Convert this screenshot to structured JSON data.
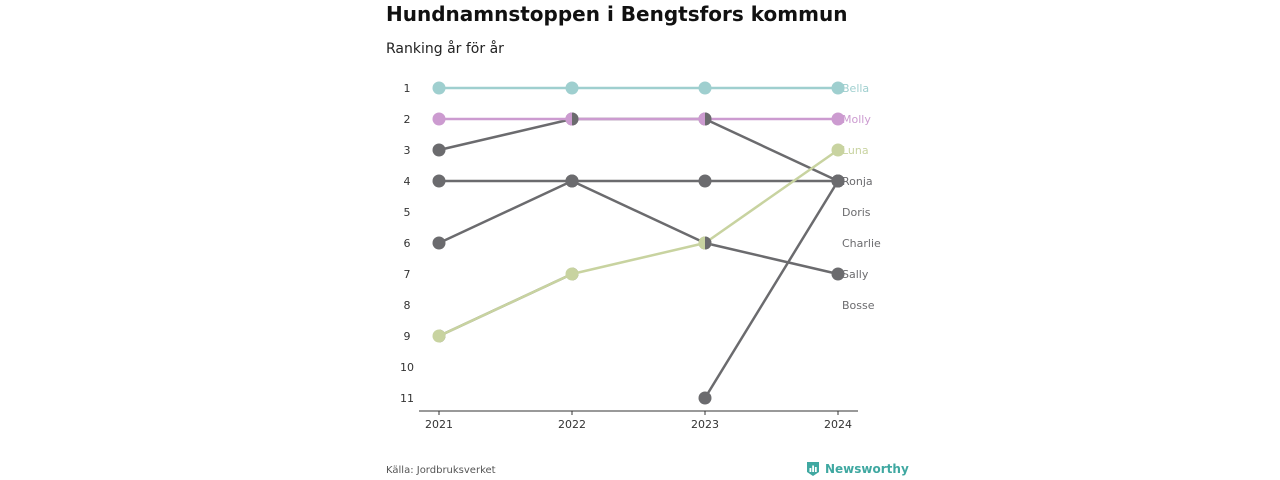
{
  "title": "Hundnamnstoppen i Bengtsfors kommun",
  "subtitle": "Ranking år för år",
  "source": "Källa: Jordbruksverket",
  "brand": {
    "name": "Newsworthy",
    "icon": "newsworthy-logo-icon",
    "color": "#3fa8a1"
  },
  "chart_data": {
    "type": "line",
    "title": "Hundnamnstoppen i Bengtsfors kommun",
    "subtitle": "Ranking år för år",
    "x": [
      "2021",
      "2022",
      "2023",
      "2024"
    ],
    "y_ticks": [
      1,
      2,
      3,
      4,
      5,
      6,
      7,
      8,
      9,
      10,
      11
    ],
    "ylim": [
      1,
      11
    ],
    "y_reversed": true,
    "grid": false,
    "series": [
      {
        "name": "Bella",
        "values": [
          1,
          1,
          1,
          1
        ],
        "color": "#9fcfcf",
        "highlight": true
      },
      {
        "name": "Molly",
        "values": [
          2,
          2,
          2,
          2
        ],
        "color": "#cc9bd0",
        "highlight": true
      },
      {
        "name": "Luna",
        "values": [
          9,
          7,
          6,
          3
        ],
        "color": "#c8d3a0",
        "highlight": true
      },
      {
        "name": "Ronja",
        "values": [
          4,
          4,
          4,
          4
        ],
        "color": "#6b6b6e"
      },
      {
        "name": "Doris",
        "values": [
          6,
          4,
          6,
          7
        ],
        "color": "#6b6b6e"
      },
      {
        "name": "Charlie",
        "values": [
          3,
          2,
          2,
          4
        ],
        "color": "#6b6b6e"
      },
      {
        "name": "Sally",
        "values": [
          null,
          null,
          11,
          4
        ],
        "color": "#6b6b6e"
      },
      {
        "name": "Bosse",
        "values": [
          9,
          7,
          null,
          null
        ],
        "color": "#6b6b6e",
        "split_markers": true
      }
    ],
    "labels": [
      {
        "name": "Bella",
        "rank": 1,
        "color": "#9fcfcf"
      },
      {
        "name": "Molly",
        "rank": 2,
        "color": "#cc9bd0"
      },
      {
        "name": "Luna",
        "rank": 3,
        "color": "#c8d3a0"
      },
      {
        "name": "Ronja",
        "rank": 4,
        "color": "#6b6b6e"
      },
      {
        "name": "Doris",
        "rank": 5,
        "color": "#6b6b6e"
      },
      {
        "name": "Charlie",
        "rank": 6,
        "color": "#6b6b6e"
      },
      {
        "name": "Sally",
        "rank": 7,
        "color": "#6b6b6e"
      },
      {
        "name": "Bosse",
        "rank": 8,
        "color": "#6b6b6e"
      }
    ]
  }
}
